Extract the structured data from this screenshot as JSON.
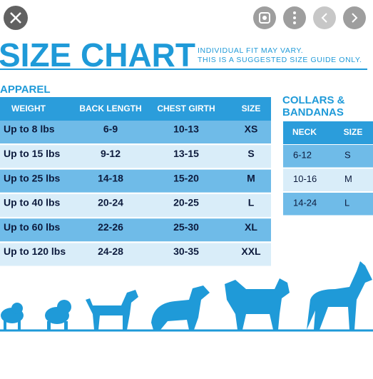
{
  "header": {
    "title": "SIZE CHART",
    "note": [
      "INDIVIDUAL FIT MAY VARY.",
      "THIS IS A SUGGESTED SIZE GUIDE ONLY."
    ]
  },
  "apparel": {
    "title": "APPAREL",
    "columns": [
      "WEIGHT",
      "BACK LENGTH",
      "CHEST GIRTH",
      "SIZE"
    ],
    "rows": [
      [
        "Up to 8 lbs",
        "6-9",
        "10-13",
        "XS"
      ],
      [
        "Up to 15 lbs",
        "9-12",
        "13-15",
        "S"
      ],
      [
        "Up to 25 lbs",
        "14-18",
        "15-20",
        "M"
      ],
      [
        "Up to 40 lbs",
        "20-24",
        "20-25",
        "L"
      ],
      [
        "Up to 60 lbs",
        "22-26",
        "25-30",
        "XL"
      ],
      [
        "Up to 120 lbs",
        "24-28",
        "30-35",
        "XXL"
      ]
    ]
  },
  "collars": {
    "title": [
      "COLLARS &",
      "BANDANAS"
    ],
    "columns": [
      "NECK",
      "SIZE"
    ],
    "rows": [
      [
        "6-12",
        "S"
      ],
      [
        "10-16",
        "M"
      ],
      [
        "14-24",
        "L"
      ]
    ]
  }
}
